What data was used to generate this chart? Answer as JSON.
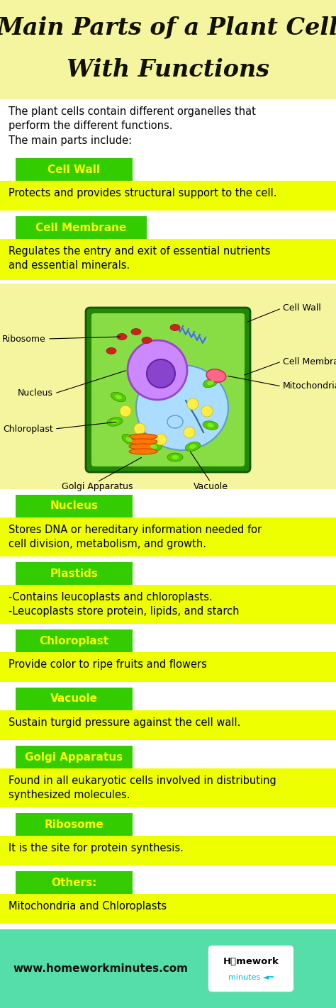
{
  "title_line1": "Main Parts of a Plant Cell",
  "title_line2": "With Functions",
  "title_bg": "#f5f5a0",
  "title_color": "#111100",
  "intro_text_lines": [
    "The plant cells contain different organelles that",
    "perform the different functions.",
    "The main parts include:"
  ],
  "sections": [
    {
      "label": "Cell Wall",
      "label_bg": "#33cc00",
      "label_color": "#ffff00",
      "desc": "Protects and provides structural support to the cell.",
      "desc_bg": "#eeff00",
      "desc_lines": 1
    },
    {
      "label": "Cell Membrane",
      "label_bg": "#33cc00",
      "label_color": "#ffff00",
      "desc": "Regulates the entry and exit of essential nutrients\nand essential minerals.",
      "desc_bg": "#eeff00",
      "desc_lines": 2
    },
    {
      "label": "Nucleus",
      "label_bg": "#33cc00",
      "label_color": "#ffff00",
      "desc": "Stores DNA or hereditary information needed for\ncell division, metabolism, and growth.",
      "desc_bg": "#eeff00",
      "desc_lines": 2
    },
    {
      "label": "Plastids",
      "label_bg": "#33cc00",
      "label_color": "#ffff00",
      "desc": "-Contains leucoplasts and chloroplasts.\n-Leucoplasts store protein, lipids, and starch",
      "desc_bg": "#eeff00",
      "desc_lines": 2
    },
    {
      "label": "Chloroplast",
      "label_bg": "#33cc00",
      "label_color": "#ffff00",
      "desc": "Provide color to ripe fruits and flowers",
      "desc_bg": "#eeff00",
      "desc_lines": 1
    },
    {
      "label": "Vacuole",
      "label_bg": "#33cc00",
      "label_color": "#ffff00",
      "desc": "Sustain turgid pressure against the cell wall.",
      "desc_bg": "#eeff00",
      "desc_lines": 1
    },
    {
      "label": "Golgi Apparatus",
      "label_bg": "#33cc00",
      "label_color": "#ffff00",
      "desc": "Found in all eukaryotic cells involved in distributing\nsynthesized molecules.",
      "desc_bg": "#eeff00",
      "desc_lines": 2
    },
    {
      "label": "Ribosome",
      "label_bg": "#33cc00",
      "label_color": "#ffff00",
      "desc": "It is the site for protein synthesis.",
      "desc_bg": "#eeff00",
      "desc_lines": 1
    },
    {
      "label": "Others:",
      "label_bg": "#33cc00",
      "label_color": "#ffff00",
      "desc": "Mitochondria and Chloroplasts",
      "desc_bg": "#eeff00",
      "desc_lines": 1
    }
  ],
  "footer_bg": "#55ddaa",
  "footer_text": "www.homeworkminutes.com",
  "bg_color": "#ffffff"
}
